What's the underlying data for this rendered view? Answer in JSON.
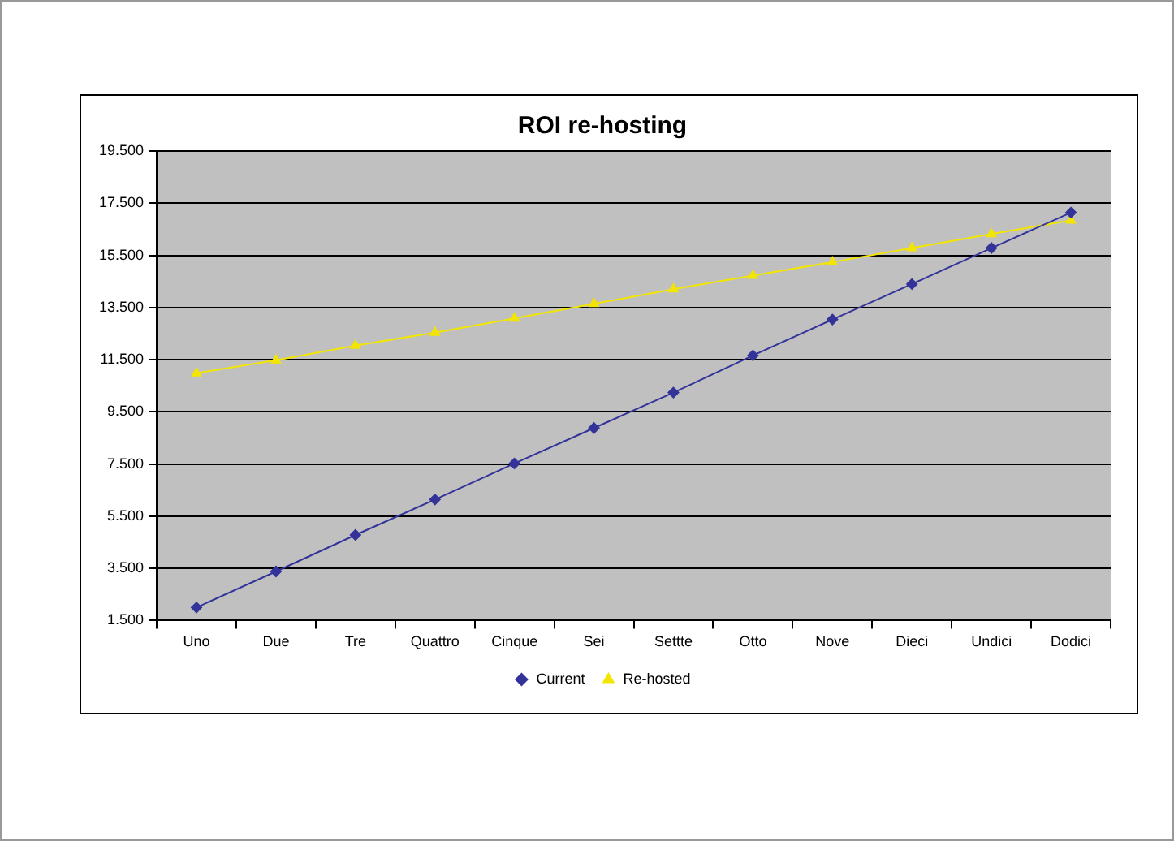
{
  "chart_data": {
    "type": "line",
    "title": "ROI re-hosting",
    "categories": [
      "Uno",
      "Due",
      "Tre",
      "Quattro",
      "Cinque",
      "Sei",
      "Settte",
      "Otto",
      "Nove",
      "Dieci",
      "Undici",
      "Dodici"
    ],
    "series": [
      {
        "name": "Current",
        "color": "#333399",
        "marker": "diamond",
        "values": [
          2000,
          3380,
          4780,
          6140,
          7520,
          8880,
          10240,
          11660,
          13040,
          14400,
          15780,
          17140
        ]
      },
      {
        "name": "Re-hosted",
        "color": "#f2e600",
        "marker": "triangle",
        "values": [
          10980,
          11480,
          12040,
          12540,
          13080,
          13640,
          14200,
          14720,
          15240,
          15780,
          16320,
          16840
        ]
      }
    ],
    "ylim": [
      1500,
      19500
    ],
    "yticks": [
      {
        "value": 1500,
        "label": "1.500"
      },
      {
        "value": 3500,
        "label": "3.500"
      },
      {
        "value": 5500,
        "label": "5.500"
      },
      {
        "value": 7500,
        "label": "7.500"
      },
      {
        "value": 9500,
        "label": "9.500"
      },
      {
        "value": 11500,
        "label": "11.500"
      },
      {
        "value": 13500,
        "label": "13.500"
      },
      {
        "value": 15500,
        "label": "15.500"
      },
      {
        "value": 17500,
        "label": "17.500"
      },
      {
        "value": 19500,
        "label": "19.500"
      }
    ],
    "grid": "y",
    "legend": "bottom",
    "line_style": "solid"
  }
}
